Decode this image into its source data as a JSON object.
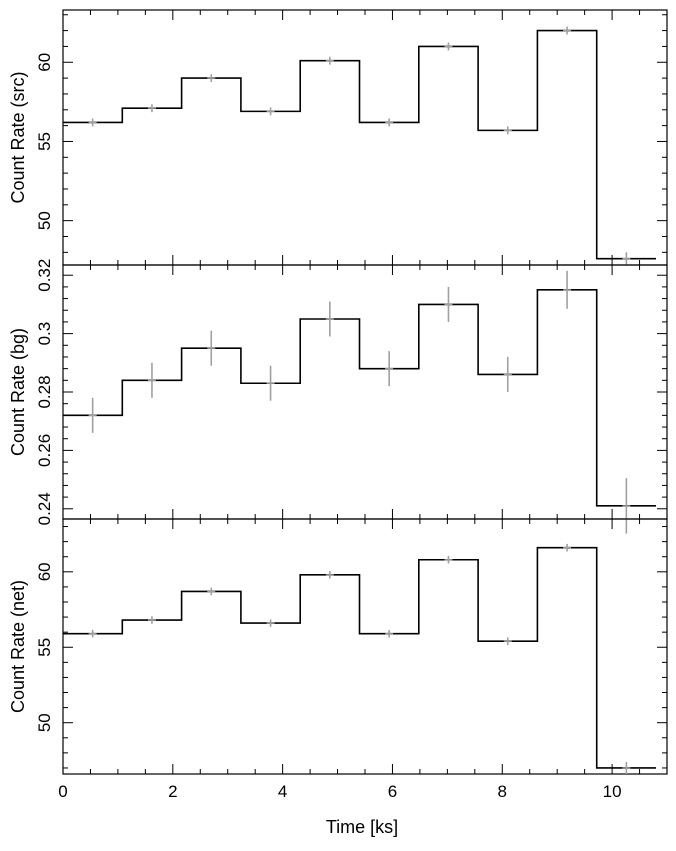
{
  "chart_data": [
    {
      "type": "line",
      "panel": "src",
      "ylabel": "Count Rate (src)",
      "xlim": [
        0,
        11
      ],
      "ylim": [
        47.2,
        63.3
      ],
      "yticks": [
        50,
        55,
        60
      ],
      "ytick_labels": [
        "50",
        "55",
        "60"
      ],
      "bin_edges": [
        0,
        1.08,
        2.16,
        3.24,
        4.32,
        5.4,
        6.48,
        7.56,
        8.64,
        9.72,
        10.8
      ],
      "x": [
        0.54,
        1.62,
        2.7,
        3.78,
        4.86,
        5.94,
        7.02,
        8.1,
        9.18,
        10.26
      ],
      "values": [
        56.2,
        57.1,
        59.0,
        56.9,
        60.1,
        56.2,
        61.0,
        55.7,
        62.0,
        47.6
      ],
      "errors": [
        0.25,
        0.25,
        0.25,
        0.25,
        0.25,
        0.25,
        0.25,
        0.25,
        0.25,
        0.4
      ],
      "step_color": "#000000",
      "error_color": "#a0a0a0"
    },
    {
      "type": "line",
      "panel": "bg",
      "ylabel": "Count Rate (bg)",
      "xlim": [
        0,
        11
      ],
      "ylim": [
        0.2365,
        0.3235
      ],
      "yticks": [
        0.24,
        0.26,
        0.28,
        0.3,
        0.32
      ],
      "ytick_labels": [
        "0.24",
        "0.26",
        "0.28",
        "0.3",
        "0.32"
      ],
      "bin_edges": [
        0,
        1.08,
        2.16,
        3.24,
        4.32,
        5.4,
        6.48,
        7.56,
        8.64,
        9.72,
        10.8
      ],
      "x": [
        0.54,
        1.62,
        2.7,
        3.78,
        4.86,
        5.94,
        7.02,
        8.1,
        9.18,
        10.26
      ],
      "values": [
        0.272,
        0.284,
        0.295,
        0.283,
        0.305,
        0.288,
        0.31,
        0.286,
        0.315,
        0.241
      ],
      "errors": [
        0.006,
        0.006,
        0.006,
        0.006,
        0.006,
        0.006,
        0.006,
        0.006,
        0.0065,
        0.0095
      ],
      "step_color": "#000000",
      "error_color": "#a0a0a0"
    },
    {
      "type": "line",
      "panel": "net",
      "ylabel": "Count Rate (net)",
      "xlim": [
        0,
        11
      ],
      "ylim": [
        46.6,
        63.5
      ],
      "yticks": [
        50,
        55,
        60
      ],
      "ytick_labels": [
        "50",
        "55",
        "60"
      ],
      "xlabel": "Time [ks]",
      "xticks": [
        0,
        2,
        4,
        6,
        8,
        10
      ],
      "xtick_labels": [
        "0",
        "2",
        "4",
        "6",
        "8",
        "10"
      ],
      "bin_edges": [
        0,
        1.08,
        2.16,
        3.24,
        4.32,
        5.4,
        6.48,
        7.56,
        8.64,
        9.72,
        10.8
      ],
      "x": [
        0.54,
        1.62,
        2.7,
        3.78,
        4.86,
        5.94,
        7.02,
        8.1,
        9.18,
        10.26
      ],
      "values": [
        55.9,
        56.8,
        58.7,
        56.6,
        59.8,
        55.9,
        60.8,
        55.4,
        61.6,
        47.0
      ],
      "errors": [
        0.25,
        0.25,
        0.25,
        0.25,
        0.25,
        0.25,
        0.25,
        0.25,
        0.25,
        0.4
      ],
      "step_color": "#000000",
      "error_color": "#a0a0a0"
    }
  ]
}
